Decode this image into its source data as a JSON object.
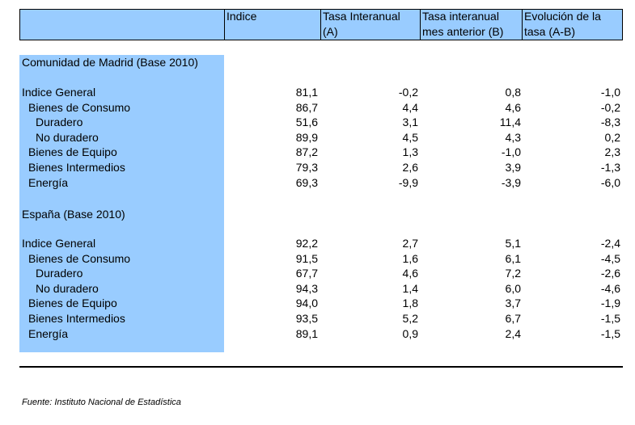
{
  "header": {
    "blank": "",
    "col1": "Indice",
    "col2_line1": "Tasa Interanual",
    "col2_line2": "(A)",
    "col3_line1": "Tasa interanual",
    "col3_line2": "mes anterior (B)",
    "col4_line1": "Evolución de la",
    "col4_line2": "tasa (A-B)"
  },
  "sections": [
    {
      "title": "Comunidad de Madrid (Base 2010)",
      "rows": [
        {
          "label": "Indice General",
          "indice": "81,1",
          "tasa_a": "-0,2",
          "tasa_b": "0,8",
          "evol": "-1,0"
        },
        {
          "label": "Bienes de Consumo",
          "indice": "86,7",
          "tasa_a": "4,4",
          "tasa_b": "4,6",
          "evol": "-0,2"
        },
        {
          "label": "Duradero",
          "indice": "51,6",
          "tasa_a": "3,1",
          "tasa_b": "11,4",
          "evol": "-8,3"
        },
        {
          "label": "No duradero",
          "indice": "89,9",
          "tasa_a": "4,5",
          "tasa_b": "4,3",
          "evol": "0,2"
        },
        {
          "label": "Bienes de Equipo",
          "indice": "87,2",
          "tasa_a": "1,3",
          "tasa_b": "-1,0",
          "evol": "2,3"
        },
        {
          "label": "Bienes Intermedios",
          "indice": "79,3",
          "tasa_a": "2,6",
          "tasa_b": "3,9",
          "evol": "-1,3"
        },
        {
          "label": "Energía",
          "indice": "69,3",
          "tasa_a": "-9,9",
          "tasa_b": "-3,9",
          "evol": "-6,0"
        }
      ]
    },
    {
      "title": "España (Base 2010)",
      "rows": [
        {
          "label": "Indice General",
          "indice": "92,2",
          "tasa_a": "2,7",
          "tasa_b": "5,1",
          "evol": "-2,4"
        },
        {
          "label": "Bienes de Consumo",
          "indice": "91,5",
          "tasa_a": "1,6",
          "tasa_b": "6,1",
          "evol": "-4,5"
        },
        {
          "label": "Duradero",
          "indice": "67,7",
          "tasa_a": "4,6",
          "tasa_b": "7,2",
          "evol": "-2,6"
        },
        {
          "label": "No duradero",
          "indice": "94,3",
          "tasa_a": "1,4",
          "tasa_b": "6,0",
          "evol": "-4,6"
        },
        {
          "label": "Bienes de Equipo",
          "indice": "94,0",
          "tasa_a": "1,8",
          "tasa_b": "3,7",
          "evol": "-1,9"
        },
        {
          "label": "Bienes Intermedios",
          "indice": "93,5",
          "tasa_a": "5,2",
          "tasa_b": "6,7",
          "evol": "-1,5"
        },
        {
          "label": "Energía",
          "indice": "89,1",
          "tasa_a": "0,9",
          "tasa_b": "2,4",
          "evol": "-1,5"
        }
      ]
    }
  ],
  "source": "Fuente: Instituto Nacional de Estadística",
  "colors": {
    "highlight": "#99ccff"
  }
}
